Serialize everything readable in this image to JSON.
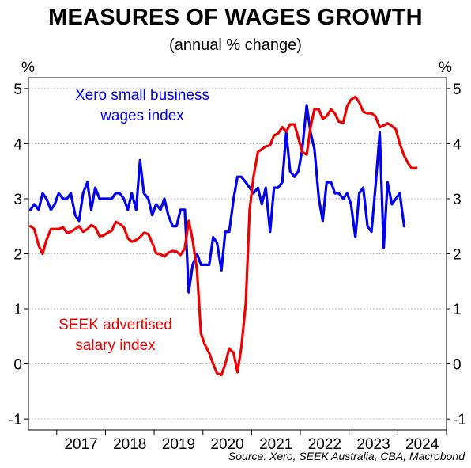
{
  "title": "MEASURES OF WAGES GROWTH",
  "subtitle": "(annual % change)",
  "source": "Source: Xero, SEEK Australia, CBA, Macrobond",
  "colors": {
    "xero": "#0000ee",
    "seek": "#ee0000",
    "grid": "#bbbbbb",
    "axis": "#000000"
  },
  "chart_data": {
    "type": "line",
    "ylabel_left": "%",
    "ylabel_right": "%",
    "ylim": [
      -1.2,
      5.2
    ],
    "yticks": [
      5,
      4,
      3,
      2,
      1,
      0,
      -1
    ],
    "xlim": [
      2016.42,
      2025.0
    ],
    "xtick_labels": [
      {
        "label": "2017",
        "year": 2017
      },
      {
        "label": "2018",
        "year": 2018
      },
      {
        "label": "2019",
        "year": 2019
      },
      {
        "label": "2020",
        "year": 2020
      },
      {
        "label": "2021",
        "year": 2021
      },
      {
        "label": "2022",
        "year": 2022
      },
      {
        "label": "2023",
        "year": 2023
      },
      {
        "label": "2024",
        "year": 2024
      }
    ],
    "grid": true,
    "series": [
      {
        "name": "Xero small business wages index",
        "label_lines": [
          "Xero small business",
          "wages index"
        ],
        "color": "#0000ee",
        "points": [
          [
            2016.46,
            2.8
          ],
          [
            2016.54,
            2.9
          ],
          [
            2016.63,
            2.8
          ],
          [
            2016.71,
            3.1
          ],
          [
            2016.79,
            3.0
          ],
          [
            2016.88,
            2.8
          ],
          [
            2016.96,
            2.9
          ],
          [
            2017.04,
            3.1
          ],
          [
            2017.13,
            3.0
          ],
          [
            2017.21,
            3.0
          ],
          [
            2017.29,
            3.1
          ],
          [
            2017.38,
            2.7
          ],
          [
            2017.46,
            2.6
          ],
          [
            2017.54,
            3.1
          ],
          [
            2017.63,
            3.3
          ],
          [
            2017.71,
            2.8
          ],
          [
            2017.79,
            3.2
          ],
          [
            2017.88,
            3.0
          ],
          [
            2017.96,
            3.0
          ],
          [
            2018.04,
            3.0
          ],
          [
            2018.13,
            3.0
          ],
          [
            2018.21,
            3.1
          ],
          [
            2018.29,
            3.1
          ],
          [
            2018.38,
            3.0
          ],
          [
            2018.46,
            2.8
          ],
          [
            2018.54,
            3.1
          ],
          [
            2018.63,
            2.8
          ],
          [
            2018.71,
            3.7
          ],
          [
            2018.79,
            3.1
          ],
          [
            2018.88,
            3.0
          ],
          [
            2018.96,
            2.7
          ],
          [
            2019.04,
            2.9
          ],
          [
            2019.13,
            2.8
          ],
          [
            2019.21,
            3.0
          ],
          [
            2019.29,
            2.7
          ],
          [
            2019.38,
            2.5
          ],
          [
            2019.46,
            2.5
          ],
          [
            2019.54,
            2.8
          ],
          [
            2019.63,
            2.8
          ],
          [
            2019.71,
            1.3
          ],
          [
            2019.79,
            1.8
          ],
          [
            2019.88,
            2.0
          ],
          [
            2019.96,
            1.8
          ],
          [
            2020.04,
            1.8
          ],
          [
            2020.13,
            1.8
          ],
          [
            2020.21,
            2.3
          ],
          [
            2020.29,
            2.2
          ],
          [
            2020.38,
            1.7
          ],
          [
            2020.46,
            2.4
          ],
          [
            2020.54,
            2.4
          ],
          [
            2020.63,
            3.0
          ],
          [
            2020.71,
            3.4
          ],
          [
            2020.79,
            3.4
          ],
          [
            2020.88,
            3.3
          ],
          [
            2020.96,
            3.2
          ],
          [
            2021.04,
            3.1
          ],
          [
            2021.13,
            3.2
          ],
          [
            2021.21,
            2.9
          ],
          [
            2021.29,
            3.2
          ],
          [
            2021.38,
            2.4
          ],
          [
            2021.46,
            3.2
          ],
          [
            2021.54,
            3.2
          ],
          [
            2021.63,
            3.3
          ],
          [
            2021.71,
            4.2
          ],
          [
            2021.79,
            3.5
          ],
          [
            2021.88,
            3.4
          ],
          [
            2021.96,
            3.5
          ],
          [
            2022.04,
            3.9
          ],
          [
            2022.13,
            4.7
          ],
          [
            2022.21,
            4.2
          ],
          [
            2022.29,
            3.9
          ],
          [
            2022.38,
            3.0
          ],
          [
            2022.46,
            2.6
          ],
          [
            2022.54,
            3.3
          ],
          [
            2022.63,
            3.3
          ],
          [
            2022.71,
            3.1
          ],
          [
            2022.79,
            3.1
          ],
          [
            2022.88,
            3.0
          ],
          [
            2022.96,
            3.1
          ],
          [
            2023.04,
            2.9
          ],
          [
            2023.13,
            2.3
          ],
          [
            2023.21,
            3.1
          ],
          [
            2023.29,
            3.2
          ],
          [
            2023.38,
            2.5
          ],
          [
            2023.46,
            2.4
          ],
          [
            2023.54,
            3.2
          ],
          [
            2023.63,
            4.2
          ],
          [
            2023.71,
            2.1
          ],
          [
            2023.79,
            3.3
          ],
          [
            2023.88,
            2.9
          ],
          [
            2023.96,
            3.0
          ],
          [
            2024.04,
            3.1
          ],
          [
            2024.13,
            2.5
          ]
        ]
      },
      {
        "name": "SEEK advertised salary index",
        "label_lines": [
          "SEEK advertised",
          "salary index"
        ],
        "color": "#ee0000",
        "points": [
          [
            2016.46,
            2.5
          ],
          [
            2016.54,
            2.45
          ],
          [
            2016.63,
            2.15
          ],
          [
            2016.71,
            2.0
          ],
          [
            2016.79,
            2.25
          ],
          [
            2016.88,
            2.45
          ],
          [
            2016.96,
            2.45
          ],
          [
            2017.04,
            2.45
          ],
          [
            2017.13,
            2.48
          ],
          [
            2017.21,
            2.38
          ],
          [
            2017.29,
            2.4
          ],
          [
            2017.38,
            2.45
          ],
          [
            2017.46,
            2.5
          ],
          [
            2017.54,
            2.4
          ],
          [
            2017.63,
            2.45
          ],
          [
            2017.71,
            2.52
          ],
          [
            2017.79,
            2.48
          ],
          [
            2017.88,
            2.32
          ],
          [
            2017.96,
            2.33
          ],
          [
            2018.04,
            2.38
          ],
          [
            2018.13,
            2.42
          ],
          [
            2018.21,
            2.58
          ],
          [
            2018.29,
            2.55
          ],
          [
            2018.38,
            2.48
          ],
          [
            2018.46,
            2.28
          ],
          [
            2018.54,
            2.22
          ],
          [
            2018.63,
            2.25
          ],
          [
            2018.71,
            2.3
          ],
          [
            2018.79,
            2.38
          ],
          [
            2018.88,
            2.36
          ],
          [
            2018.96,
            2.2
          ],
          [
            2019.04,
            2.01
          ],
          [
            2019.13,
            1.99
          ],
          [
            2019.21,
            1.95
          ],
          [
            2019.29,
            2.02
          ],
          [
            2019.38,
            2.05
          ],
          [
            2019.46,
            2.04
          ],
          [
            2019.54,
            1.98
          ],
          [
            2019.63,
            2.1
          ],
          [
            2019.71,
            2.6
          ],
          [
            2019.79,
            2.25
          ],
          [
            2019.88,
            1.7
          ],
          [
            2019.96,
            0.55
          ],
          [
            2020.04,
            0.35
          ],
          [
            2020.13,
            0.2
          ],
          [
            2020.21,
            0.0
          ],
          [
            2020.29,
            -0.17
          ],
          [
            2020.38,
            -0.2
          ],
          [
            2020.46,
            0.0
          ],
          [
            2020.54,
            0.28
          ],
          [
            2020.63,
            0.2
          ],
          [
            2020.71,
            -0.15
          ],
          [
            2020.79,
            0.3
          ],
          [
            2020.88,
            1.1
          ],
          [
            2020.96,
            2.8
          ],
          [
            2021.04,
            3.4
          ],
          [
            2021.13,
            3.85
          ],
          [
            2021.21,
            3.9
          ],
          [
            2021.29,
            3.95
          ],
          [
            2021.38,
            3.97
          ],
          [
            2021.46,
            4.15
          ],
          [
            2021.54,
            4.18
          ],
          [
            2021.63,
            4.3
          ],
          [
            2021.71,
            4.22
          ],
          [
            2021.79,
            4.35
          ],
          [
            2021.88,
            4.35
          ],
          [
            2021.96,
            4.1
          ],
          [
            2022.04,
            3.85
          ],
          [
            2022.13,
            3.8
          ],
          [
            2022.21,
            4.3
          ],
          [
            2022.29,
            4.63
          ],
          [
            2022.38,
            4.62
          ],
          [
            2022.46,
            4.45
          ],
          [
            2022.54,
            4.5
          ],
          [
            2022.63,
            4.62
          ],
          [
            2022.71,
            4.55
          ],
          [
            2022.79,
            4.4
          ],
          [
            2022.88,
            4.38
          ],
          [
            2022.96,
            4.68
          ],
          [
            2023.04,
            4.8
          ],
          [
            2023.13,
            4.85
          ],
          [
            2023.21,
            4.75
          ],
          [
            2023.29,
            4.58
          ],
          [
            2023.38,
            4.55
          ],
          [
            2023.46,
            4.55
          ],
          [
            2023.54,
            4.5
          ],
          [
            2023.63,
            4.3
          ],
          [
            2023.71,
            4.33
          ],
          [
            2023.79,
            4.37
          ],
          [
            2023.88,
            4.32
          ],
          [
            2023.96,
            4.26
          ],
          [
            2024.04,
            4.0
          ],
          [
            2024.13,
            3.78
          ],
          [
            2024.21,
            3.65
          ],
          [
            2024.29,
            3.55
          ],
          [
            2024.38,
            3.56
          ]
        ]
      }
    ]
  }
}
